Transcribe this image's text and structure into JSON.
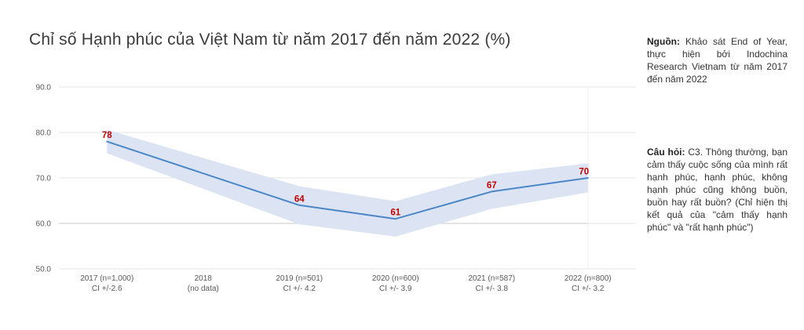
{
  "title": "Chỉ số Hạnh phúc của Việt Nam từ năm 2017 đến năm 2022 (%)",
  "notes": {
    "source_label": "Nguồn:",
    "source_text": " Khảo sát End of Year, thực hiện bởi Indochina Research Vietnam từ năm 2017 đến năm 2022",
    "question_label": "Câu hỏi:",
    "question_text": " C3. Thông thường, bạn cảm thấy cuộc sống của mình rất hạnh phúc, hạnh phúc, không hạnh phúc cũng không buồn, buồn hay rất buồn? (Chỉ hiện thị kết quả của \"cảm thấy hạnh phúc\" và \"rất hạnh phúc\")"
  },
  "chart_data": {
    "type": "line",
    "title": "Chỉ số Hạnh phúc của Việt Nam từ năm 2017 đến năm 2022 (%)",
    "categories": [
      {
        "label": "2017 (n=1,000)",
        "sublabel": "CI +/-2.6"
      },
      {
        "label": "2018",
        "sublabel": "(no data)"
      },
      {
        "label": "2019 (n=501)",
        "sublabel": "CI +/- 4.2"
      },
      {
        "label": "2020 (n=600)",
        "sublabel": "CI +/- 3.9"
      },
      {
        "label": "2021 (n=587)",
        "sublabel": "CI +/- 3.8"
      },
      {
        "label": "2022 (n=800)",
        "sublabel": "CI +/- 3.2"
      }
    ],
    "series": [
      {
        "name": "Chỉ số Hạnh phúc (%)",
        "values": [
          78,
          null,
          64,
          61,
          67,
          70
        ],
        "ci": [
          2.6,
          null,
          4.2,
          3.9,
          3.8,
          3.2
        ]
      }
    ],
    "ylim": [
      50,
      90
    ],
    "yticks": [
      90,
      80,
      70,
      60,
      50
    ],
    "ytick_labels": [
      "90.0",
      "80.0",
      "70.0",
      "60.0",
      "50.0"
    ],
    "grid": true,
    "legend": "none",
    "colors": {
      "line": "#4a86c8",
      "band": "#dce4f3",
      "data_label": "#c00000",
      "axis_text": "#595959",
      "gridline": "#e4e4e4",
      "gridline_dark": "#c9c9c9",
      "gridline_faint": "#ededed"
    }
  }
}
